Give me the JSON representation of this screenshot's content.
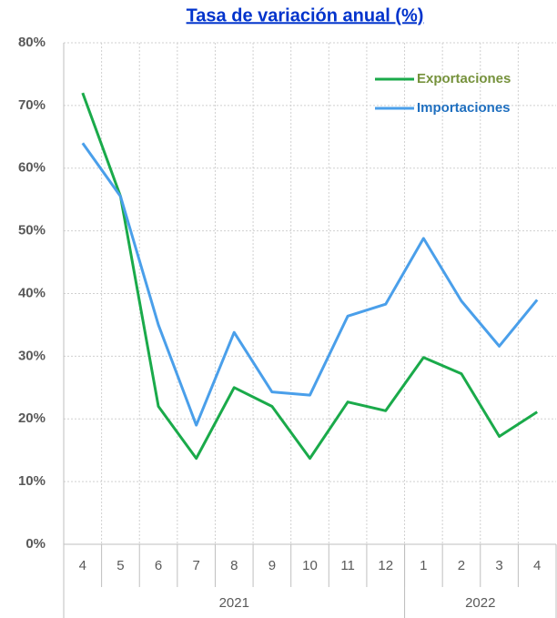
{
  "chart_data": {
    "type": "line",
    "title": "Tasa de variación anual (%)",
    "categories": [
      "4",
      "5",
      "6",
      "7",
      "8",
      "9",
      "10",
      "11",
      "12",
      "1",
      "2",
      "3",
      "4"
    ],
    "x_groups": [
      {
        "label": "2021",
        "count": 9
      },
      {
        "label": "2022",
        "count": 4
      }
    ],
    "series": [
      {
        "name": "Exportaciones",
        "color": "#1aaa4a",
        "label_color": "#76923c",
        "values": [
          72,
          55.5,
          22,
          13.7,
          25,
          22,
          13.7,
          22.7,
          21.3,
          29.8,
          27.2,
          17.2,
          21.1
        ]
      },
      {
        "name": "Importaciones",
        "color": "#4a9fea",
        "label_color": "#1f6fbf",
        "values": [
          64,
          55.5,
          35,
          19,
          33.8,
          24.3,
          23.8,
          36.4,
          38.3,
          48.8,
          38.8,
          31.6,
          39
        ]
      }
    ],
    "ylim": [
      0,
      80
    ],
    "yticks": [
      {
        "value": 0,
        "label": "0%"
      },
      {
        "value": 10,
        "label": "10%"
      },
      {
        "value": 20,
        "label": "20%"
      },
      {
        "value": 30,
        "label": "30%"
      },
      {
        "value": 40,
        "label": "40%"
      },
      {
        "value": 50,
        "label": "50%"
      },
      {
        "value": 60,
        "label": "60%"
      },
      {
        "value": 70,
        "label": "70%"
      },
      {
        "value": 80,
        "label": "80%"
      }
    ],
    "grid": true,
    "legend": "upper right"
  }
}
